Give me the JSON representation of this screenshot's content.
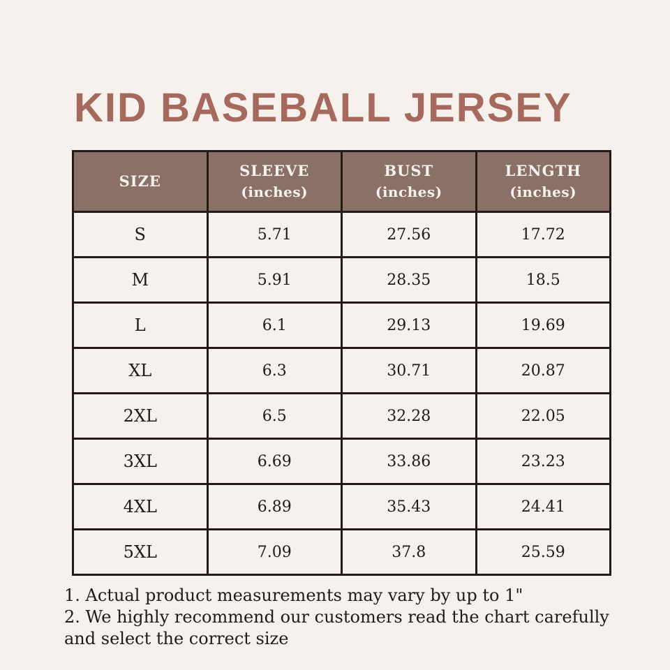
{
  "page": {
    "title": "KID BASEBALL JERSEY",
    "background_color": "#f6f1ed",
    "title_color": "#a6695e"
  },
  "size_chart": {
    "header_bg_color": "#8a7066",
    "header_text_color": "#f7f2ee",
    "border_color": "#211a16",
    "cell_text_color": "#211a16",
    "columns": [
      {
        "label": "SIZE",
        "unit": ""
      },
      {
        "label": "SLEEVE",
        "unit": "(inches)"
      },
      {
        "label": "BUST",
        "unit": "(inches)"
      },
      {
        "label": "LENGTH",
        "unit": "(inches)"
      }
    ],
    "rows": [
      {
        "size": "S",
        "sleeve": "5.71",
        "bust": "27.56",
        "length": "17.72"
      },
      {
        "size": "M",
        "sleeve": "5.91",
        "bust": "28.35",
        "length": "18.5"
      },
      {
        "size": "L",
        "sleeve": "6.1",
        "bust": "29.13",
        "length": "19.69"
      },
      {
        "size": "XL",
        "sleeve": "6.3",
        "bust": "30.71",
        "length": "20.87"
      },
      {
        "size": "2XL",
        "sleeve": "6.5",
        "bust": "32.28",
        "length": "22.05"
      },
      {
        "size": "3XL",
        "sleeve": "6.69",
        "bust": "33.86",
        "length": "23.23"
      },
      {
        "size": "4XL",
        "sleeve": "6.89",
        "bust": "35.43",
        "length": "24.41"
      },
      {
        "size": "5XL",
        "sleeve": "7.09",
        "bust": "37.8",
        "length": "25.59"
      }
    ]
  },
  "notes": {
    "line1": "1. Actual product measurements may vary by up to 1\"",
    "line2": "2. We highly recommend our customers read the chart carefully and select the correct size"
  },
  "chart_data": {
    "type": "table",
    "title": "KID BASEBALL JERSEY",
    "columns": [
      "SIZE",
      "SLEEVE (inches)",
      "BUST (inches)",
      "LENGTH (inches)"
    ],
    "rows": [
      [
        "S",
        5.71,
        27.56,
        17.72
      ],
      [
        "M",
        5.91,
        28.35,
        18.5
      ],
      [
        "L",
        6.1,
        29.13,
        19.69
      ],
      [
        "XL",
        6.3,
        30.71,
        20.87
      ],
      [
        "2XL",
        6.5,
        32.28,
        22.05
      ],
      [
        "3XL",
        6.69,
        33.86,
        23.23
      ],
      [
        "4XL",
        6.89,
        35.43,
        24.41
      ],
      [
        "5XL",
        7.09,
        37.8,
        25.59
      ]
    ]
  }
}
